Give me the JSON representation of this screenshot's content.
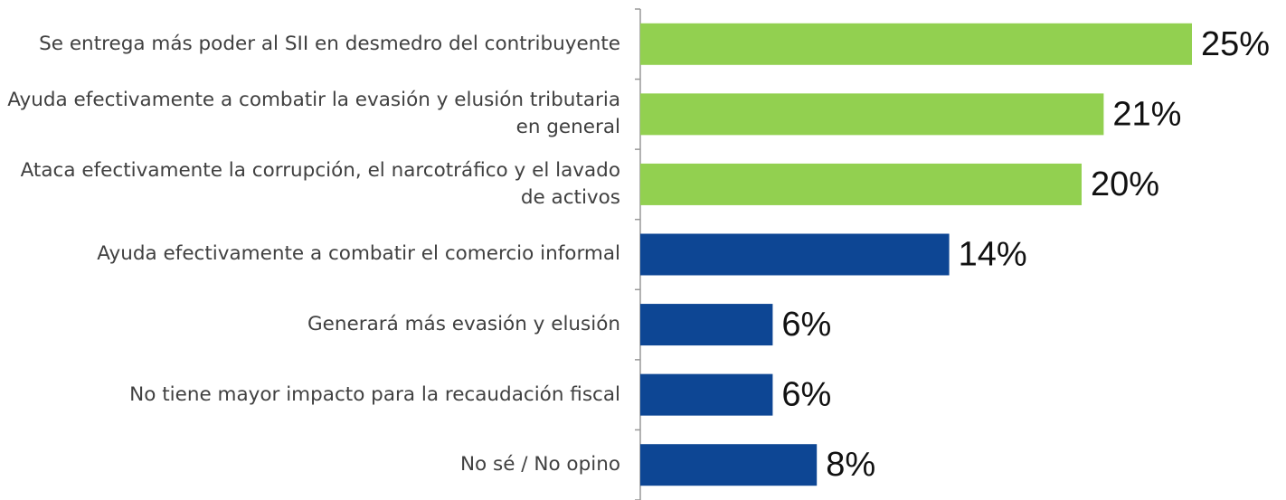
{
  "chart_data": {
    "type": "barh",
    "categories": [
      "Se entrega más poder al SII en desmedro del contribuyente",
      "Ayuda efectivamente a combatir la evasión y elusión tributaria en general",
      "Ataca efectivamente la corrupción, el narcotráfico y el lavado de activos",
      "Ayuda efectivamente a combatir el comercio informal",
      "Generará más evasión y elusión",
      "No tiene mayor impacto para la recaudación fiscal",
      "No sé / No opino"
    ],
    "values": [
      25,
      21,
      20,
      14,
      6,
      6,
      8
    ],
    "value_labels": [
      "25%",
      "21%",
      "20%",
      "14%",
      "6%",
      "6%",
      "8%"
    ],
    "colors": [
      "#92d050",
      "#92d050",
      "#92d050",
      "#0d4694",
      "#0d4694",
      "#0d4694",
      "#0d4694"
    ]
  }
}
